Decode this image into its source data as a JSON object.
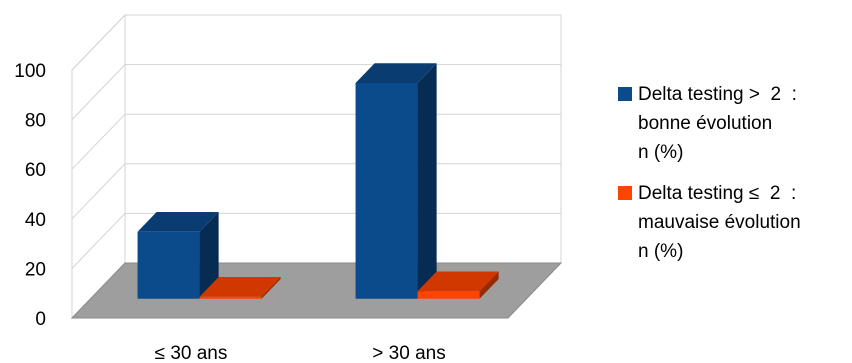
{
  "chart_data": {
    "type": "bar",
    "style": "3d-clustered-column",
    "categories": [
      "≤  30 ans",
      "> 30 ans"
    ],
    "series": [
      {
        "name": "Delta testing >  2  :\nbonne évolution\nn (%)",
        "values": [
          27,
          87
        ],
        "color": "#0b4a8b"
      },
      {
        "name": "Delta testing ≤  2  :\nmauvaise évolution\nn (%)",
        "values": [
          0,
          3
        ],
        "color": "#ff4400"
      }
    ],
    "ylim": [
      0,
      100
    ],
    "yticks": [
      "0",
      "20",
      "40",
      "60",
      "80",
      "100"
    ],
    "grid": true,
    "legend_position": "right",
    "floor_color": "#9e9e9e"
  }
}
